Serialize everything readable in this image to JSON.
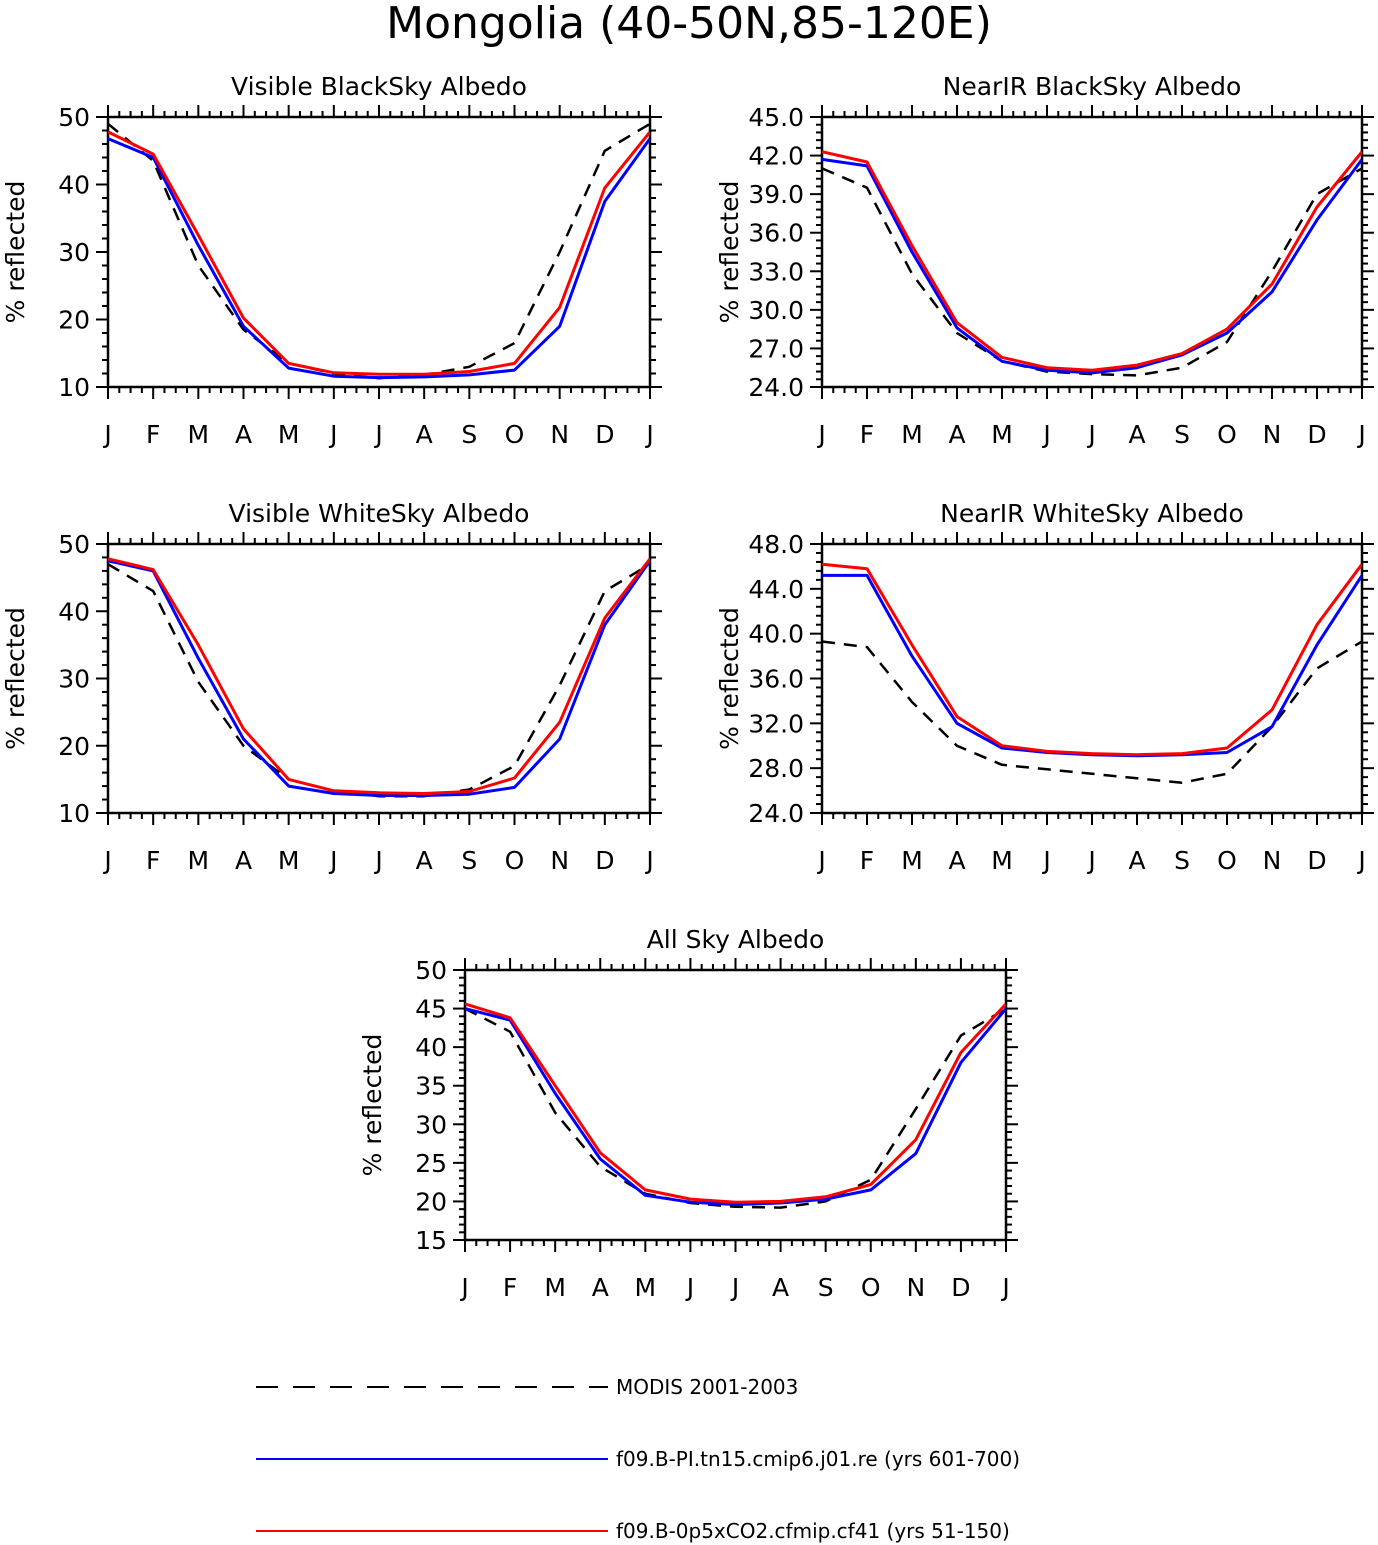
{
  "figure_title": "Mongolia (40-50N,85-120E)",
  "colors": {
    "modis": "#000000",
    "pi": "#0000ff",
    "co2": "#ff0000"
  },
  "legend": [
    {
      "label": "MODIS 2001-2003",
      "color": "#000000",
      "style": "dashed"
    },
    {
      "label": "f09.B-PI.tn15.cmip6.j01.re (yrs 601-700)",
      "color": "#0000ff",
      "style": "solid"
    },
    {
      "label": "f09.B-0p5xCO2.cfmip.cf41 (yrs 51-150)",
      "color": "#ff0000",
      "style": "solid"
    }
  ],
  "chart_data": [
    {
      "type": "line",
      "title": "Visible BlackSky Albedo",
      "ylabel": "% reflected",
      "xlabel": "",
      "categories": [
        "J",
        "F",
        "M",
        "A",
        "M",
        "J",
        "J",
        "A",
        "S",
        "O",
        "N",
        "D",
        "J"
      ],
      "ylim": [
        10,
        50
      ],
      "yticks": [
        "10",
        "20",
        "30",
        "40",
        "50"
      ],
      "series": [
        {
          "name": "MODIS 2001-2003",
          "values": [
            49.0,
            43.5,
            28.0,
            18.5,
            13.5,
            12.0,
            11.3,
            11.8,
            13.0,
            16.5,
            30.0,
            45.0,
            49.0
          ]
        },
        {
          "name": "f09.B-PI.tn15.cmip6.j01.re (yrs 601-700)",
          "values": [
            46.8,
            44.0,
            31.0,
            19.0,
            12.8,
            11.6,
            11.4,
            11.5,
            11.8,
            12.5,
            19.0,
            37.5,
            46.8
          ]
        },
        {
          "name": "f09.B-0p5xCO2.cfmip.cf41 (yrs 51-150)",
          "values": [
            47.8,
            44.5,
            32.5,
            20.2,
            13.5,
            12.1,
            11.9,
            11.9,
            12.3,
            13.5,
            21.8,
            39.5,
            47.8
          ]
        }
      ]
    },
    {
      "type": "line",
      "title": "NearIR BlackSky Albedo",
      "ylabel": "% reflected",
      "xlabel": "",
      "categories": [
        "J",
        "F",
        "M",
        "A",
        "M",
        "J",
        "J",
        "A",
        "S",
        "O",
        "N",
        "D",
        "J"
      ],
      "ylim": [
        24,
        45
      ],
      "yticks": [
        "24.0",
        "27.0",
        "30.0",
        "33.0",
        "36.0",
        "39.0",
        "42.0",
        "45.0"
      ],
      "series": [
        {
          "name": "MODIS 2001-2003",
          "values": [
            41.0,
            39.5,
            32.8,
            28.2,
            26.0,
            25.2,
            25.0,
            24.9,
            25.5,
            27.5,
            33.0,
            39.0,
            41.0
          ]
        },
        {
          "name": "f09.B-PI.tn15.cmip6.j01.re (yrs 601-700)",
          "values": [
            41.7,
            41.2,
            34.5,
            28.6,
            26.0,
            25.3,
            25.1,
            25.5,
            26.5,
            28.2,
            31.4,
            37.0,
            41.7
          ]
        },
        {
          "name": "f09.B-0p5xCO2.cfmip.cf41 (yrs 51-150)",
          "values": [
            42.3,
            41.5,
            35.0,
            29.0,
            26.3,
            25.5,
            25.3,
            25.7,
            26.6,
            28.5,
            32.0,
            38.0,
            42.3
          ]
        }
      ]
    },
    {
      "type": "line",
      "title": "Visible WhiteSky Albedo",
      "ylabel": "% reflected",
      "xlabel": "",
      "categories": [
        "J",
        "F",
        "M",
        "A",
        "M",
        "J",
        "J",
        "A",
        "S",
        "O",
        "N",
        "D",
        "J"
      ],
      "ylim": [
        10,
        50
      ],
      "yticks": [
        "10",
        "20",
        "30",
        "40",
        "50"
      ],
      "series": [
        {
          "name": "MODIS 2001-2003",
          "values": [
            47.0,
            43.0,
            29.5,
            20.0,
            15.0,
            13.3,
            12.5,
            12.5,
            13.5,
            17.0,
            29.0,
            43.0,
            47.0
          ]
        },
        {
          "name": "f09.B-PI.tn15.cmip6.j01.re (yrs 601-700)",
          "values": [
            47.5,
            46.0,
            33.0,
            21.0,
            14.0,
            12.9,
            12.6,
            12.6,
            12.8,
            13.8,
            21.0,
            38.0,
            47.5
          ]
        },
        {
          "name": "f09.B-0p5xCO2.cfmip.cf41 (yrs 51-150)",
          "values": [
            47.8,
            46.2,
            35.0,
            22.5,
            15.0,
            13.3,
            13.0,
            12.9,
            13.2,
            15.2,
            23.5,
            39.0,
            47.8
          ]
        }
      ]
    },
    {
      "type": "line",
      "title": "NearIR WhiteSky Albedo",
      "ylabel": "% reflected",
      "xlabel": "",
      "categories": [
        "J",
        "F",
        "M",
        "A",
        "M",
        "J",
        "J",
        "A",
        "S",
        "O",
        "N",
        "D",
        "J"
      ],
      "ylim": [
        24,
        48
      ],
      "yticks": [
        "24.0",
        "28.0",
        "32.0",
        "36.0",
        "40.0",
        "44.0",
        "48.0"
      ],
      "series": [
        {
          "name": "MODIS 2001-2003",
          "values": [
            39.3,
            38.8,
            33.9,
            30.0,
            28.3,
            27.9,
            27.5,
            27.1,
            26.7,
            27.5,
            31.7,
            36.9,
            39.3
          ]
        },
        {
          "name": "f09.B-PI.tn15.cmip6.j01.re (yrs 601-700)",
          "values": [
            45.2,
            45.2,
            38.0,
            32.0,
            29.8,
            29.4,
            29.2,
            29.1,
            29.2,
            29.4,
            31.7,
            39.0,
            45.2
          ]
        },
        {
          "name": "f09.B-0p5xCO2.cfmip.cf41 (yrs 51-150)",
          "values": [
            46.2,
            45.8,
            39.0,
            32.6,
            30.0,
            29.5,
            29.3,
            29.2,
            29.3,
            29.8,
            33.2,
            40.8,
            46.2
          ]
        }
      ]
    },
    {
      "type": "line",
      "title": "All Sky Albedo",
      "ylabel": "% reflected",
      "xlabel": "",
      "categories": [
        "J",
        "F",
        "M",
        "A",
        "M",
        "J",
        "J",
        "A",
        "S",
        "O",
        "N",
        "D",
        "J"
      ],
      "ylim": [
        15,
        50
      ],
      "yticks": [
        "15",
        "20",
        "25",
        "30",
        "35",
        "40",
        "45",
        "50"
      ],
      "series": [
        {
          "name": "MODIS 2001-2003",
          "values": [
            45.0,
            42.0,
            31.5,
            24.5,
            21.0,
            19.8,
            19.3,
            19.2,
            20.0,
            22.8,
            32.0,
            41.5,
            45.0
          ]
        },
        {
          "name": "f09.B-PI.tn15.cmip6.j01.re (yrs 601-700)",
          "values": [
            45.0,
            43.5,
            34.0,
            25.5,
            20.8,
            19.9,
            19.6,
            19.8,
            20.3,
            21.5,
            26.2,
            38.0,
            45.0
          ]
        },
        {
          "name": "f09.B-0p5xCO2.cfmip.cf41 (yrs 51-150)",
          "values": [
            45.6,
            43.8,
            35.0,
            26.3,
            21.5,
            20.3,
            19.9,
            20.0,
            20.6,
            22.2,
            28.0,
            39.3,
            45.6
          ]
        }
      ]
    }
  ]
}
